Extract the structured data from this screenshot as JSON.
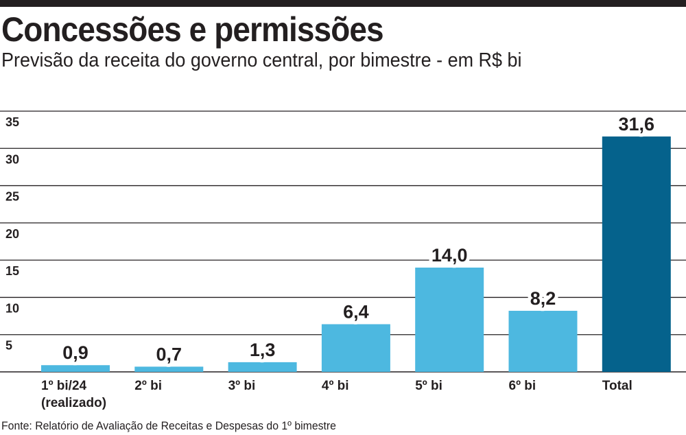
{
  "header": {
    "title": "Concessões e permissões",
    "subtitle": "Previsão da receita do governo central, por bimestre - em R$ bi"
  },
  "footer": {
    "source": "Fonte: Relatório de Avaliação de Receitas e Despesas do 1º bimestre"
  },
  "colors": {
    "bar": "#4db8e0",
    "total_bar": "#05628c",
    "gridline": "#231f20",
    "text": "#231f20"
  },
  "chart_data": {
    "type": "bar",
    "title": "Concessões e permissões",
    "subtitle": "Previsão da receita do governo central, por bimestre - em R$ bi",
    "xlabel": "",
    "ylabel": "",
    "ylim": [
      0,
      35
    ],
    "yticks": [
      5,
      10,
      15,
      20,
      25,
      30,
      35
    ],
    "grid": true,
    "categories": [
      [
        "1º bi/24",
        "(realizado)"
      ],
      [
        "2º bi"
      ],
      [
        "3º bi"
      ],
      [
        "4º bi"
      ],
      [
        "5º bi"
      ],
      [
        "6º bi"
      ],
      [
        "Total"
      ]
    ],
    "values": [
      0.9,
      0.7,
      1.3,
      6.4,
      14.0,
      8.2,
      31.6
    ],
    "value_labels": [
      "0,9",
      "0,7",
      "1,3",
      "6,4",
      "14,0",
      "8,2",
      "31,6"
    ],
    "highlight_index": 6
  }
}
